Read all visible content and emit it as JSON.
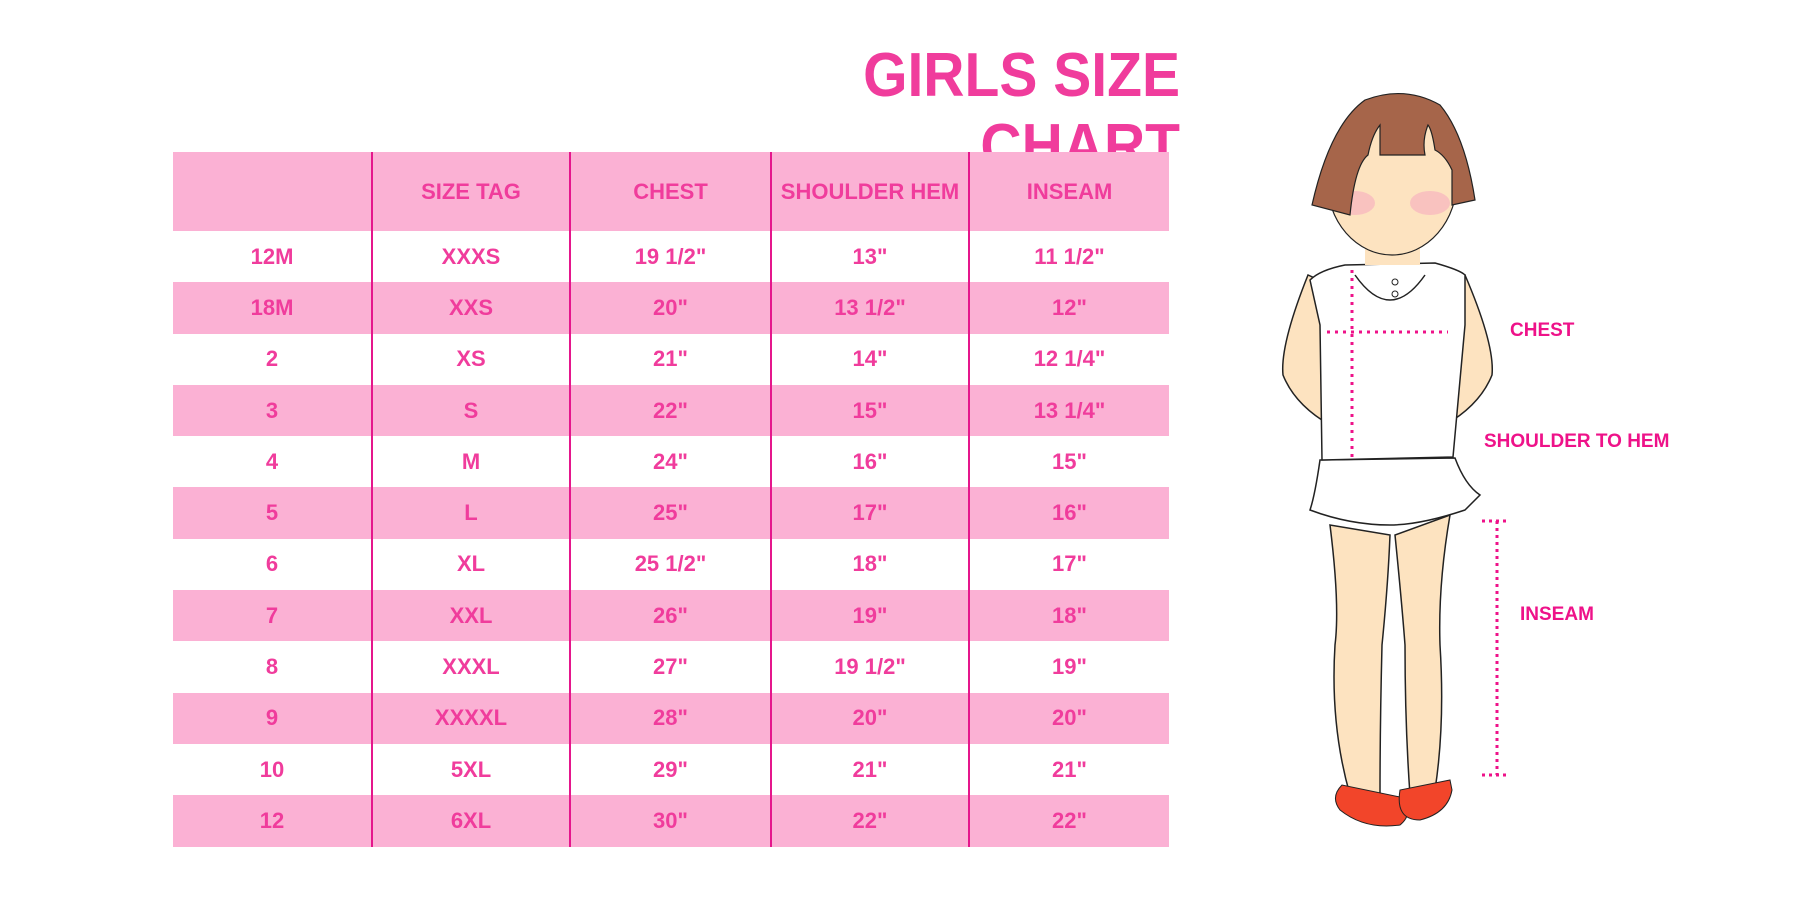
{
  "title": "GIRLS SIZE CHART",
  "table": {
    "headers": [
      "",
      "SIZE TAG",
      "CHEST",
      "SHOULDER HEM",
      "INSEAM"
    ],
    "rows": [
      [
        "12M",
        "XXXS",
        "19 1/2\"",
        "13\"",
        "11 1/2\""
      ],
      [
        "18M",
        "XXS",
        "20\"",
        "13 1/2\"",
        "12\""
      ],
      [
        "2",
        "XS",
        "21\"",
        "14\"",
        "12 1/4\""
      ],
      [
        "3",
        "S",
        "22\"",
        "15\"",
        "13 1/4\""
      ],
      [
        "4",
        "M",
        "24\"",
        "16\"",
        "15\""
      ],
      [
        "5",
        "L",
        "25\"",
        "17\"",
        "16\""
      ],
      [
        "6",
        "XL",
        "25 1/2\"",
        "18\"",
        "17\""
      ],
      [
        "7",
        "XXL",
        "26\"",
        "19\"",
        "18\""
      ],
      [
        "8",
        "XXXL",
        "27\"",
        "19 1/2\"",
        "19\""
      ],
      [
        "9",
        "XXXXL",
        "28\"",
        "20\"",
        "20\""
      ],
      [
        "10",
        "5XL",
        "29\"",
        "21\"",
        "21\""
      ],
      [
        "12",
        "6XL",
        "30\"",
        "22\"",
        "22\""
      ]
    ]
  },
  "figure": {
    "labels": {
      "chest": "CHEST",
      "shoulder_to_hem": "SHOULDER TO HEM",
      "inseam": "INSEAM"
    }
  },
  "colors": {
    "accent": "#f03c9c",
    "row_pink": "#fbb1d4",
    "divider": "#e5168c"
  }
}
